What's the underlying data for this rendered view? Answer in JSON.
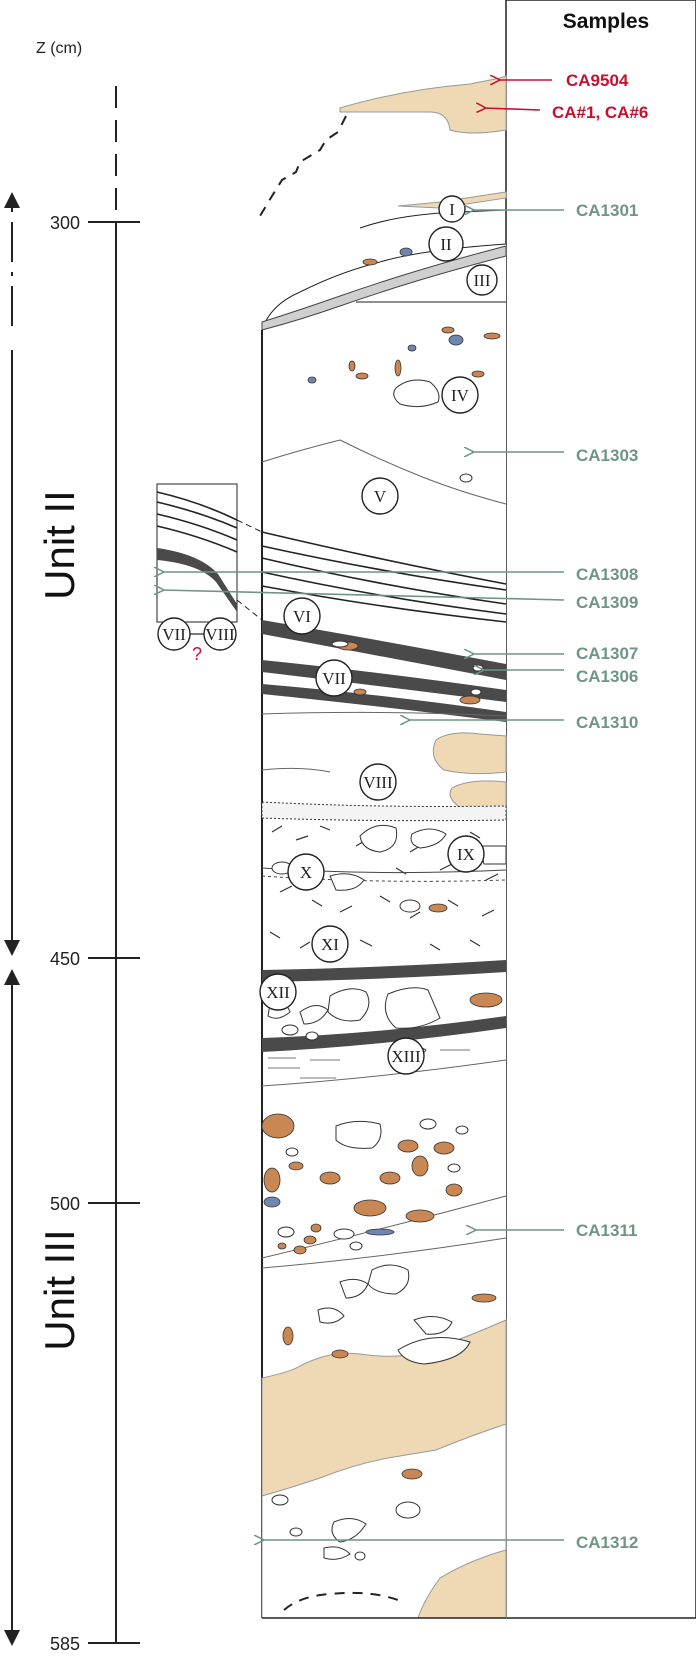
{
  "header": {
    "samples_title": "Samples",
    "z_label": "Z (cm)"
  },
  "scale": {
    "ticks": [
      {
        "label": "300",
        "depth": 300
      },
      {
        "label": "450",
        "depth": 450
      },
      {
        "label": "500",
        "depth": 500
      },
      {
        "label": "585",
        "depth": 585
      }
    ]
  },
  "units": [
    {
      "name": "Unit II",
      "from_depth": 300,
      "to_depth": 450
    },
    {
      "name": "Unit III",
      "from_depth": 450,
      "to_depth": 585
    }
  ],
  "layers": [
    "I",
    "II",
    "III",
    "IV",
    "V",
    "VI",
    "VII",
    "VIII",
    "IX",
    "X",
    "XI",
    "XII",
    "XIII"
  ],
  "inset": {
    "left_layer": "VII",
    "right_layer": "VIII",
    "uncertain_mark": "?"
  },
  "samples": [
    {
      "id": "CA9504",
      "color": "#c8102e"
    },
    {
      "id": "CA#1, CA#6",
      "color": "#c8102e"
    },
    {
      "id": "CA1301",
      "color": "#6e9682"
    },
    {
      "id": "CA1303",
      "color": "#6e9682"
    },
    {
      "id": "CA1308",
      "color": "#6e9682"
    },
    {
      "id": "CA1309",
      "color": "#6e9682"
    },
    {
      "id": "CA1307",
      "color": "#6e9682"
    },
    {
      "id": "CA1306",
      "color": "#6e9682"
    },
    {
      "id": "CA1310",
      "color": "#6e9682"
    },
    {
      "id": "CA1311",
      "color": "#6e9682"
    },
    {
      "id": "CA1312",
      "color": "#6e9682"
    }
  ],
  "colors": {
    "sand": "#eed9b4",
    "clast_orange": "#c98753",
    "clast_blue": "#6f86b3",
    "dark_band": "#4a4a4a",
    "arrow_red": "#c8102e",
    "arrow_green": "#6e9682"
  }
}
